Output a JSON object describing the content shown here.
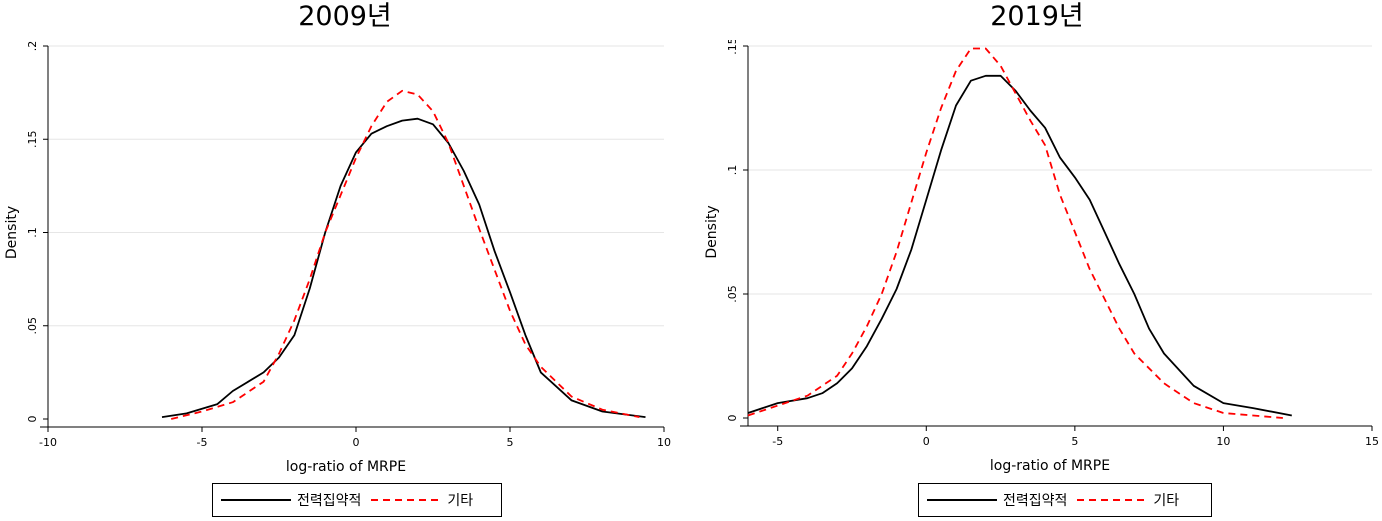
{
  "chart_data": [
    {
      "type": "line",
      "title": "2009년",
      "xlabel": "log-ratio of MRPE",
      "ylabel": "Density",
      "xlim": [
        -10,
        10
      ],
      "ylim": [
        0,
        0.2
      ],
      "xticks": [
        -10,
        -5,
        0,
        5,
        10
      ],
      "xtick_labels": [
        "-10",
        "-5",
        "0",
        "5",
        "10"
      ],
      "yticks": [
        0,
        0.05,
        0.1,
        0.15,
        0.2
      ],
      "ytick_labels": [
        "0",
        ".05",
        ".1",
        ".15",
        ".2"
      ],
      "grid": true,
      "legend_position": "bottom",
      "series": [
        {
          "name": "전력집약적",
          "color": "#000000",
          "dash": "solid",
          "points": [
            [
              -6.3,
              0.001
            ],
            [
              -5.5,
              0.003
            ],
            [
              -4.5,
              0.008
            ],
            [
              -4,
              0.015
            ],
            [
              -3.5,
              0.02
            ],
            [
              -3,
              0.025
            ],
            [
              -2.5,
              0.033
            ],
            [
              -2,
              0.045
            ],
            [
              -1.5,
              0.07
            ],
            [
              -1,
              0.1
            ],
            [
              -0.5,
              0.125
            ],
            [
              0,
              0.143
            ],
            [
              0.5,
              0.153
            ],
            [
              1,
              0.157
            ],
            [
              1.5,
              0.16
            ],
            [
              2,
              0.161
            ],
            [
              2.5,
              0.158
            ],
            [
              3,
              0.148
            ],
            [
              3.5,
              0.133
            ],
            [
              4,
              0.115
            ],
            [
              4.5,
              0.09
            ],
            [
              5,
              0.068
            ],
            [
              5.5,
              0.045
            ],
            [
              6,
              0.025
            ],
            [
              7,
              0.01
            ],
            [
              8,
              0.004
            ],
            [
              9.4,
              0.001
            ]
          ]
        },
        {
          "name": "기타",
          "color": "#ff0000",
          "dash": "dashed",
          "points": [
            [
              -6,
              0.0
            ],
            [
              -5,
              0.004
            ],
            [
              -4,
              0.009
            ],
            [
              -3,
              0.02
            ],
            [
              -2.5,
              0.035
            ],
            [
              -2,
              0.053
            ],
            [
              -1.5,
              0.075
            ],
            [
              -1,
              0.1
            ],
            [
              -0.5,
              0.12
            ],
            [
              0,
              0.14
            ],
            [
              0.5,
              0.157
            ],
            [
              1,
              0.17
            ],
            [
              1.5,
              0.176
            ],
            [
              2,
              0.174
            ],
            [
              2.5,
              0.165
            ],
            [
              3,
              0.148
            ],
            [
              3.5,
              0.125
            ],
            [
              4,
              0.102
            ],
            [
              4.5,
              0.08
            ],
            [
              5,
              0.058
            ],
            [
              5.5,
              0.04
            ],
            [
              6,
              0.028
            ],
            [
              7,
              0.012
            ],
            [
              8,
              0.005
            ],
            [
              9.2,
              0.001
            ]
          ]
        }
      ]
    },
    {
      "type": "line",
      "title": "2019년",
      "xlabel": "log-ratio of MRPE",
      "ylabel": "Density",
      "xlim": [
        -6,
        15
      ],
      "ylim": [
        0,
        0.15
      ],
      "xticks": [
        -5,
        0,
        5,
        10,
        15
      ],
      "xtick_labels": [
        "-5",
        "0",
        "5",
        "10",
        "15"
      ],
      "yticks": [
        0,
        0.05,
        0.1,
        0.15
      ],
      "ytick_labels": [
        "0",
        ".05",
        ".1",
        ".15"
      ],
      "grid": true,
      "legend_position": "bottom",
      "series": [
        {
          "name": "전력집약적",
          "color": "#000000",
          "dash": "solid",
          "points": [
            [
              -6,
              0.002
            ],
            [
              -5,
              0.006
            ],
            [
              -4,
              0.008
            ],
            [
              -3.5,
              0.01
            ],
            [
              -3,
              0.014
            ],
            [
              -2.5,
              0.02
            ],
            [
              -2,
              0.029
            ],
            [
              -1.5,
              0.04
            ],
            [
              -1,
              0.052
            ],
            [
              -0.5,
              0.068
            ],
            [
              0,
              0.088
            ],
            [
              0.5,
              0.108
            ],
            [
              1,
              0.126
            ],
            [
              1.5,
              0.136
            ],
            [
              2,
              0.138
            ],
            [
              2.5,
              0.138
            ],
            [
              3,
              0.132
            ],
            [
              3.5,
              0.124
            ],
            [
              4,
              0.117
            ],
            [
              4.5,
              0.105
            ],
            [
              5,
              0.097
            ],
            [
              5.5,
              0.088
            ],
            [
              6,
              0.075
            ],
            [
              6.5,
              0.062
            ],
            [
              7,
              0.05
            ],
            [
              7.5,
              0.036
            ],
            [
              8,
              0.026
            ],
            [
              9,
              0.013
            ],
            [
              10,
              0.006
            ],
            [
              11,
              0.004
            ],
            [
              12.3,
              0.001
            ]
          ]
        },
        {
          "name": "기타",
          "color": "#ff0000",
          "dash": "dashed",
          "points": [
            [
              -6,
              0.001
            ],
            [
              -5,
              0.005
            ],
            [
              -4,
              0.009
            ],
            [
              -3,
              0.017
            ],
            [
              -2.5,
              0.026
            ],
            [
              -2,
              0.037
            ],
            [
              -1.5,
              0.05
            ],
            [
              -1,
              0.067
            ],
            [
              -0.5,
              0.087
            ],
            [
              0,
              0.107
            ],
            [
              0.5,
              0.125
            ],
            [
              1,
              0.14
            ],
            [
              1.5,
              0.149
            ],
            [
              2,
              0.149
            ],
            [
              2.5,
              0.142
            ],
            [
              3,
              0.131
            ],
            [
              3.5,
              0.12
            ],
            [
              4,
              0.11
            ],
            [
              4.5,
              0.09
            ],
            [
              5,
              0.075
            ],
            [
              5.5,
              0.06
            ],
            [
              6,
              0.048
            ],
            [
              6.5,
              0.036
            ],
            [
              7,
              0.026
            ],
            [
              8,
              0.014
            ],
            [
              9,
              0.006
            ],
            [
              10,
              0.002
            ],
            [
              11,
              0.001
            ],
            [
              12,
              0.0
            ]
          ]
        }
      ]
    }
  ]
}
